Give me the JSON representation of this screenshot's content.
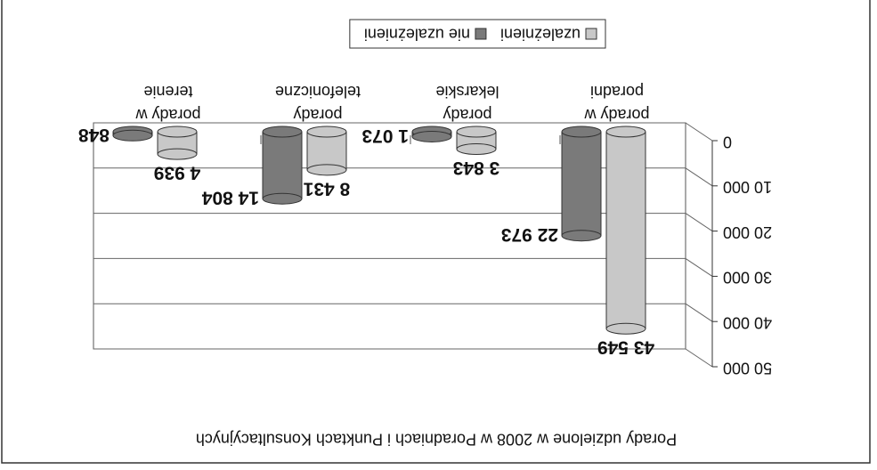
{
  "chart_data": {
    "type": "bar3d",
    "title": "Porady udzielone w 2008 w Poradniach i Punktach Konsultacyjnych",
    "categories": [
      "porady w\nporadni",
      "porady\nlekarskie",
      "porady\ntelefoniczne",
      "porady w\nterenie"
    ],
    "series": [
      {
        "name": "uzależnieni",
        "color": "#c8c8c8",
        "values": [
          43549,
          3843,
          8431,
          4939
        ],
        "value_labels": [
          "43 549",
          "3 843",
          "8 431",
          "4 939"
        ]
      },
      {
        "name": "nie uzależnieni",
        "color": "#7a7a7a",
        "values": [
          22973,
          1073,
          14804,
          848
        ],
        "value_labels": [
          "22 973",
          "1 073",
          "14 804",
          "848"
        ]
      }
    ],
    "ylim": [
      0,
      50000
    ],
    "yticks": [
      0,
      {
        "value": 10000,
        "label": "10 000"
      },
      {
        "value": 20000,
        "label": "20 000"
      },
      {
        "value": 30000,
        "label": "30 000"
      },
      {
        "value": 40000,
        "label": "40 000"
      },
      {
        "value": 50000,
        "label": "50 000"
      }
    ],
    "grid": true,
    "legend": "bottom",
    "rotated": true
  }
}
